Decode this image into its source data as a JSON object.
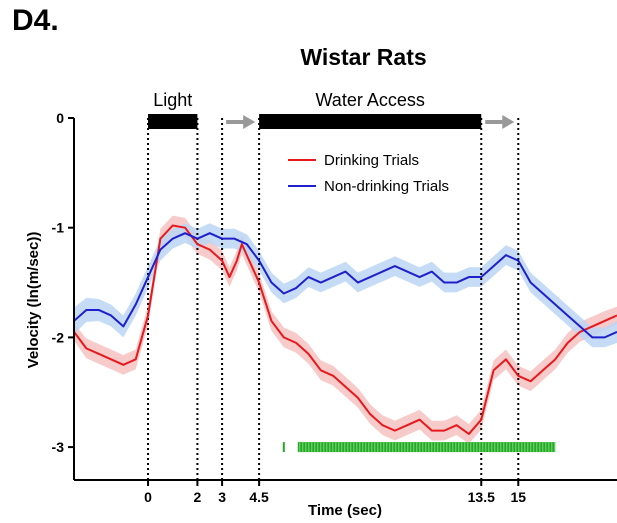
{
  "panel_label": "D4.",
  "chart_data": {
    "type": "line",
    "title": "Wistar Rats",
    "xlabel": "Time (sec)",
    "ylabel": "Velocity (ln(m/sec))",
    "xlim": [
      -3.0,
      19.0
    ],
    "ylim": [
      -3.3,
      0.0
    ],
    "x_ticks": [
      0,
      2,
      3,
      4.5,
      13.5,
      15
    ],
    "x_tick_labels": [
      "0",
      "2",
      "3",
      "4.5",
      "13.5",
      "15"
    ],
    "y_ticks": [
      0,
      -1,
      -2,
      -3
    ],
    "y_tick_labels": [
      "0",
      "-1",
      "-2",
      "-3"
    ],
    "event_lines": [
      0,
      2,
      3,
      4.5,
      13.5,
      15
    ],
    "epochs": [
      {
        "label": "Light",
        "start": 0,
        "end": 2
      },
      {
        "label": "Water Access",
        "start": 4.5,
        "end": 13.5
      }
    ],
    "arrows": [
      {
        "start": 3,
        "end": 4.5
      },
      {
        "start": 13.5,
        "end": 15
      }
    ],
    "significance_bar": {
      "start": 5.5,
      "end": 16.5,
      "y": -3.0,
      "color": "#22aa22"
    },
    "legend_position": "top-center",
    "series": [
      {
        "name": "Drinking Trials",
        "color": "#e8191d",
        "band_color": "#f7c2c2",
        "x": [
          -3.0,
          -2.5,
          -2.0,
          -1.5,
          -1.0,
          -0.5,
          0.0,
          0.5,
          1.0,
          1.5,
          2.0,
          2.5,
          3.0,
          3.3,
          3.6,
          3.8,
          4.0,
          4.2,
          4.5,
          5.0,
          5.5,
          6.0,
          6.5,
          7.0,
          7.5,
          8.0,
          8.5,
          9.0,
          9.5,
          10.0,
          10.5,
          11.0,
          11.5,
          12.0,
          12.5,
          13.0,
          13.5,
          14.0,
          14.5,
          15.0,
          15.5,
          16.0,
          16.5,
          17.0,
          17.5,
          18.0,
          18.5,
          19.0
        ],
        "values": [
          -1.95,
          -2.1,
          -2.15,
          -2.2,
          -2.25,
          -2.2,
          -1.8,
          -1.1,
          -0.98,
          -1.0,
          -1.15,
          -1.2,
          -1.3,
          -1.45,
          -1.3,
          -1.15,
          -1.25,
          -1.35,
          -1.5,
          -1.85,
          -2.0,
          -2.05,
          -2.15,
          -2.3,
          -2.35,
          -2.45,
          -2.55,
          -2.7,
          -2.8,
          -2.85,
          -2.8,
          -2.75,
          -2.85,
          -2.85,
          -2.8,
          -2.88,
          -2.75,
          -2.3,
          -2.2,
          -2.35,
          -2.4,
          -2.3,
          -2.2,
          -2.05,
          -1.95,
          -1.9,
          -1.85,
          -1.8
        ],
        "error": [
          0.08,
          0.09,
          0.09,
          0.09,
          0.09,
          0.09,
          0.09,
          0.09,
          0.09,
          0.09,
          0.09,
          0.09,
          0.09,
          0.09,
          0.09,
          0.09,
          0.09,
          0.09,
          0.09,
          0.09,
          0.09,
          0.09,
          0.09,
          0.09,
          0.09,
          0.09,
          0.09,
          0.09,
          0.09,
          0.09,
          0.09,
          0.09,
          0.09,
          0.09,
          0.09,
          0.09,
          0.09,
          0.09,
          0.09,
          0.09,
          0.09,
          0.09,
          0.09,
          0.09,
          0.09,
          0.09,
          0.09,
          0.08
        ]
      },
      {
        "name": "Non-drinking Trials",
        "color": "#1f1fcc",
        "band_color": "#bcd6f5",
        "x": [
          -3.0,
          -2.5,
          -2.0,
          -1.5,
          -1.0,
          -0.5,
          0.0,
          0.5,
          1.0,
          1.5,
          2.0,
          2.5,
          3.0,
          3.5,
          4.0,
          4.5,
          5.0,
          5.5,
          6.0,
          6.5,
          7.0,
          7.5,
          8.0,
          8.5,
          9.0,
          9.5,
          10.0,
          10.5,
          11.0,
          11.5,
          12.0,
          12.5,
          13.0,
          13.5,
          14.0,
          14.5,
          15.0,
          15.5,
          16.0,
          16.5,
          17.0,
          17.5,
          18.0,
          18.5,
          19.0
        ],
        "values": [
          -1.85,
          -1.75,
          -1.75,
          -1.8,
          -1.9,
          -1.7,
          -1.45,
          -1.2,
          -1.1,
          -1.05,
          -1.1,
          -1.05,
          -1.1,
          -1.1,
          -1.15,
          -1.3,
          -1.5,
          -1.6,
          -1.55,
          -1.45,
          -1.5,
          -1.45,
          -1.4,
          -1.5,
          -1.45,
          -1.4,
          -1.35,
          -1.4,
          -1.45,
          -1.4,
          -1.5,
          -1.5,
          -1.45,
          -1.45,
          -1.35,
          -1.25,
          -1.3,
          -1.5,
          -1.6,
          -1.7,
          -1.8,
          -1.9,
          -2.0,
          -2.0,
          -1.95
        ],
        "error": [
          0.12,
          0.11,
          0.1,
          0.1,
          0.1,
          0.1,
          0.1,
          0.1,
          0.09,
          0.09,
          0.09,
          0.09,
          0.09,
          0.09,
          0.09,
          0.09,
          0.09,
          0.09,
          0.09,
          0.09,
          0.09,
          0.09,
          0.09,
          0.09,
          0.09,
          0.09,
          0.09,
          0.09,
          0.09,
          0.09,
          0.09,
          0.09,
          0.09,
          0.09,
          0.09,
          0.09,
          0.09,
          0.09,
          0.09,
          0.09,
          0.09,
          0.09,
          0.09,
          0.09,
          0.1
        ]
      }
    ]
  }
}
